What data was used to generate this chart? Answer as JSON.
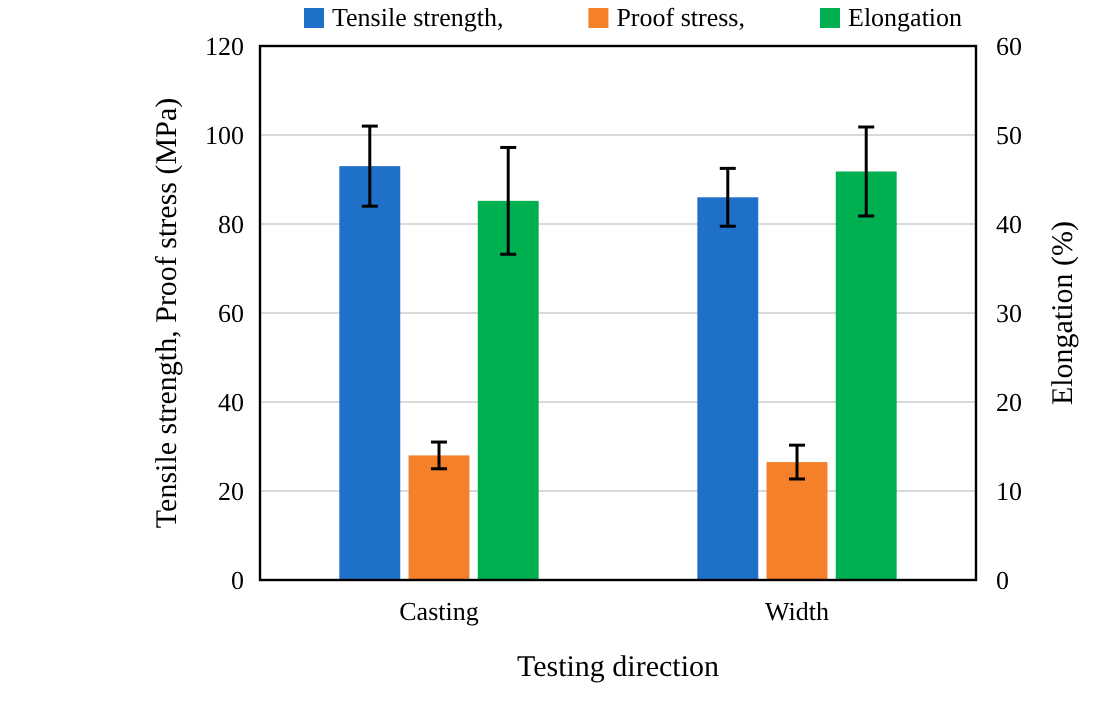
{
  "chart_data": {
    "type": "bar",
    "xlabel": "Testing direction",
    "ylabel": "Tensile strength, Proof stress (MPa)",
    "y2label": "Elongation (%)",
    "categories": [
      "Casting",
      "Width"
    ],
    "series": [
      {
        "name": "Tensile strength,",
        "color": "#1f70c8",
        "values": [
          93,
          86
        ],
        "errors": [
          9,
          6.5
        ]
      },
      {
        "name": "Proof stress,",
        "color": "#f5802a",
        "values": [
          28,
          26.5
        ],
        "errors": [
          3,
          3.8
        ]
      },
      {
        "name": "Elongation",
        "color": "#00b050",
        "values": [
          42.6,
          45.9
        ],
        "errors": [
          6,
          5
        ],
        "axis": "y2"
      }
    ],
    "ylim": [
      0,
      120
    ],
    "yticks": [
      0,
      20,
      40,
      60,
      80,
      100,
      120
    ],
    "y2lim": [
      0,
      60
    ],
    "y2ticks": [
      0,
      10,
      20,
      30,
      40,
      50,
      60
    ],
    "grid": "y",
    "legend": "top"
  }
}
